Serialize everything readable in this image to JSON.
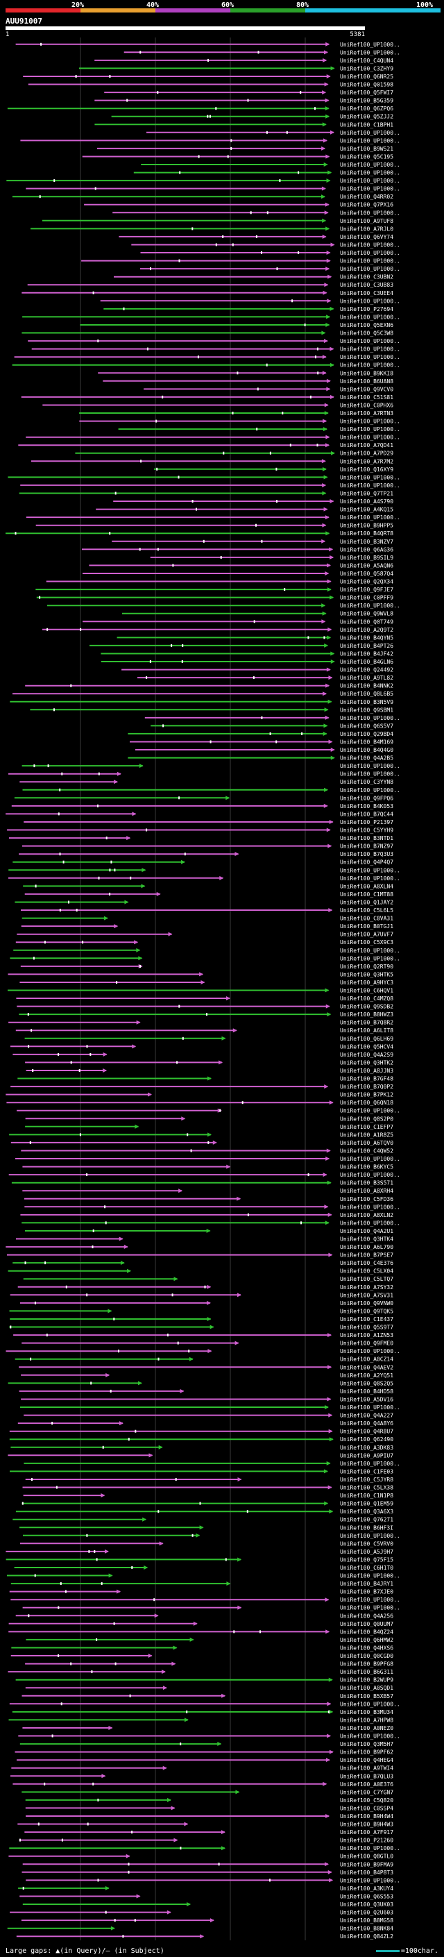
{
  "header": {
    "query_id": "AUU91007",
    "start_label": "1",
    "end_label": "5381",
    "percent_labels": [
      "20%",
      "40%",
      "60%",
      "80%",
      "100%"
    ],
    "bar_colors": [
      "#e3262b",
      "#e9a030",
      "#b040c0",
      "#2aa02a",
      "#1ec0e0"
    ]
  },
  "legend": {
    "left_text": "Large gaps: ▲(in Query)/– (in Subject)",
    "right_text": "=100char."
  },
  "colors": {
    "pink": "#d060d0",
    "green": "#30c030",
    "white": "#ffffff",
    "grid": "#3a3a3a"
  },
  "hits": [
    "UniRef100_UP1000..",
    "UniRef100_UP1000..",
    "UniRef100_C4QUN4",
    "UniRef100_C3ZHY9",
    "UniRef100_Q6NR25",
    "UniRef100_Q01598",
    "UniRef100_Q5FWI7",
    "UniRef100_B5G359",
    "UniRef100_Q6ZPQ6",
    "UniRef100_Q5ZJJ2",
    "UniRef100_C1BPH1",
    "UniRef100_UP1000..",
    "UniRef100_UP1000..",
    "UniRef100_B9WS21",
    "UniRef100_Q5C195",
    "UniRef100_UP1000..",
    "UniRef100_UP1000..",
    "UniRef100_UP1000..",
    "UniRef100_UP1000..",
    "UniRef100_Q4RR02",
    "UniRef100_Q7PX16",
    "UniRef100_UP1000..",
    "UniRef100_A9TUF8",
    "UniRef100_A7RJL0",
    "UniRef100_Q6VY74",
    "UniRef100_UP1000..",
    "UniRef100_UP1000..",
    "UniRef100_UP1000..",
    "UniRef100_UP1000..",
    "UniRef100_C3UBN2",
    "UniRef100_C3UB83",
    "UniRef100_C3UEE4",
    "UniRef100_UP1000..",
    "UniRef100_P27694",
    "UniRef100_UP1000..",
    "UniRef100_Q5EXN6",
    "UniRef100_Q5C3W8",
    "UniRef100_UP1000..",
    "UniRef100_UP1000..",
    "UniRef100_UP1000..",
    "UniRef100_UP1000..",
    "UniRef100_B9KKI8",
    "UniRef100_B6UAN8",
    "UniRef100_Q9VCV0",
    "UniRef100_C51S81",
    "UniRef100_C0PHX6",
    "UniRef100_A7RTN3",
    "UniRef100_UP1000..",
    "UniRef100_UP1000..",
    "UniRef100_UP1000..",
    "UniRef100_A7QD41",
    "UniRef100_A7PD29",
    "UniRef100_A7R7M2",
    "UniRef100_Q16XY9",
    "UniRef100_UP1000..",
    "UniRef100_UP1000..",
    "UniRef100_Q7TP21",
    "UniRef100_A4S790",
    "UniRef100_A4KQ15",
    "UniRef100_UP1000..",
    "UniRef100_B9HPP5",
    "UniRef100_B4QRT8",
    "UniRef100_B3NZV7",
    "UniRef100_Q6AG36",
    "UniRef100_B9SIL9",
    "UniRef100_A5AQN6",
    "UniRef100_Q587Q4",
    "UniRef100_Q2QX34",
    "UniRef100_Q9FJE7",
    "UniRef100_C0PFF9",
    "UniRef100_UP1000..",
    "UniRef100_Q9WVL8",
    "UniRef100_Q0T749",
    "UniRef100_A2Q9T2",
    "UniRef100_B4QYN5",
    "UniRef100_B4PT26",
    "UniRef100_B4JF42",
    "UniRef100_B4GLN6",
    "UniRef100_Q24492",
    "UniRef100_A9TL82",
    "UniRef100_B4NNK2",
    "UniRef100_Q8L6B5",
    "UniRef100_B3N5V9",
    "UniRef100_Q9SBM1",
    "UniRef100_UP1000..",
    "UniRef100_Q6S5V7",
    "UniRef100_Q29BD4",
    "UniRef100_B4M169",
    "UniRef100_B4Q4G0",
    "UniRef100_Q4A2B5",
    "UniRef100_UP1000..",
    "UniRef100_UP1000..",
    "UniRef100_C3YYN8",
    "UniRef100_UP1000..",
    "UniRef100_Q9FPQ6",
    "UniRef100_B4K053",
    "UniRef100_B7QC44",
    "UniRef100_P21397",
    "UniRef100_C5YYH9",
    "UniRef100_B3NTD1",
    "UniRef100_B7NZ97",
    "UniRef100_B7Q3U3",
    "UniRef100_Q4P4Q7",
    "UniRef100_UP1000..",
    "UniRef100_UP1000..",
    "UniRef100_A8XLN4",
    "UniRef100_C1MT88",
    "UniRef100_Q1JAY2",
    "UniRef100_C5L6L5",
    "UniRef100_C8VA31",
    "UniRef100_B0TGJ1",
    "UniRef100_A7UVF7",
    "UniRef100_C5X9C3",
    "UniRef100_UP1000..",
    "UniRef100_UP1000..",
    "UniRef100_Q2RT90",
    "UniRef100_Q3HTK5",
    "UniRef100_A9HYC3",
    "UniRef100_C6HQV1",
    "UniRef100_C4MZQ8",
    "UniRef100_Q9SDB2",
    "UniRef100_B8HWZ3",
    "UniRef100_B7Q8R2",
    "UniRef100_A6LIT8",
    "UniRef100_Q6LH69",
    "UniRef100_Q5HCV4",
    "UniRef100_Q4A2S9",
    "UniRef100_Q3HTK2",
    "UniRef100_A8JJN3",
    "UniRef100_B7GF48",
    "UniRef100_B7Q0P2",
    "UniRef100_B7PK12",
    "UniRef100_Q6QN18",
    "UniRef100_UP1000..",
    "UniRef100_Q8S2P0",
    "UniRef100_C1EFP7",
    "UniRef100_A1R8Z5",
    "UniRef100_A6TQV0",
    "UniRef100_C4QW52",
    "UniRef100_UP1000..",
    "UniRef100_B6KYC5",
    "UniRef100_UP1000..",
    "UniRef100_B3S571",
    "UniRef100_A8XRH4",
    "UniRef100_C5FD36",
    "UniRef100_UP1000..",
    "UniRef100_A8XLN2",
    "UniRef100_UP1000..",
    "UniRef100_Q4A2U1",
    "UniRef100_Q3HTK4",
    "UniRef100_A6L790",
    "UniRef100_B7PSE7",
    "UniRef100_C4E376",
    "UniRef100_C5LX04",
    "UniRef100_C5LTQ7",
    "UniRef100_A7SY32",
    "UniRef100_A7SV31",
    "UniRef100_Q9VNW0",
    "UniRef100_Q9TQK5",
    "UniRef100_C1E437",
    "UniRef100_Q5S9T7",
    "UniRef100_A1ZN53",
    "UniRef100_Q9FME0",
    "UniRef100_UP1000..",
    "UniRef100_A0CZ14",
    "UniRef100_Q4AEV2",
    "UniRef100_A2YQ51",
    "UniRef100_Q8S2Q5",
    "UniRef100_B4HD58",
    "UniRef100_A5DV16",
    "UniRef100_UP1000..",
    "UniRef100_Q4A227",
    "UniRef100_Q4A8Y6",
    "UniRef100_Q4R8U7",
    "UniRef100_Q62490",
    "UniRef100_A3DK83",
    "UniRef100_A9PIU7",
    "UniRef100_UP1000..",
    "UniRef100_C1FE03",
    "UniRef100_C5JYR8",
    "UniRef100_C5LX38",
    "UniRef100_C1N1P8",
    "UniRef100_Q1EM59",
    "UniRef100_Q3A6X3",
    "UniRef100_Q76271",
    "UniRef100_B6HF3I",
    "UniRef100_UP1000..",
    "UniRef100_C5VRV0",
    "UniRef100_A5J9H7",
    "UniRef100_Q75F15",
    "UniRef100_C6H1T0",
    "UniRef100_UP1000..",
    "UniRef100_B4JRY1",
    "UniRef100_B7XJE0",
    "UniRef100_UP1000..",
    "UniRef100_UP1000..",
    "UniRef100_Q4A256",
    "UniRef100_Q0UUM7",
    "UniRef100_B4QZ24",
    "UniRef100_Q6HMW2",
    "UniRef100_Q4HXS6",
    "UniRef100_Q0CGD0",
    "UniRef100_B9PFG8",
    "UniRef100_B6G311",
    "UniRef100_B2WUP9",
    "UniRef100_A0SQD1",
    "UniRef100_B5XB57",
    "UniRef100_UP1000..",
    "UniRef100_B3MU34",
    "UniRef100_A7HPW8",
    "UniRef100_A0NEZ0",
    "UniRef100_UP1000..",
    "UniRef100_Q3M5H7",
    "UniRef100_B9PF62",
    "UniRef100_Q4HEG4",
    "UniRef100_A9TWI4",
    "UniRef100_B7QLU3",
    "UniRef100_A0E376",
    "UniRef100_C7YGN7",
    "UniRef100_C5Q820",
    "UniRef100_C0SSP4",
    "UniRef100_B9H4W4",
    "UniRef100_B9H4W3",
    "UniRef100_A7F917",
    "UniRef100_P21260",
    "UniRef100_UP1000..",
    "UniRef100_Q8GTL0",
    "UniRef100_B9FMA9",
    "UniRef100_B4P8T3",
    "UniRef100_UP1000..",
    "UniRef100_A3KUY4",
    "UniRef100_Q6S553",
    "UniRef100_Q3UK03",
    "UniRef100_Q2U603",
    "UniRef100_B8MG58",
    "UniRef100_B8NK84",
    "UniRef100_Q84ZL2"
  ]
}
